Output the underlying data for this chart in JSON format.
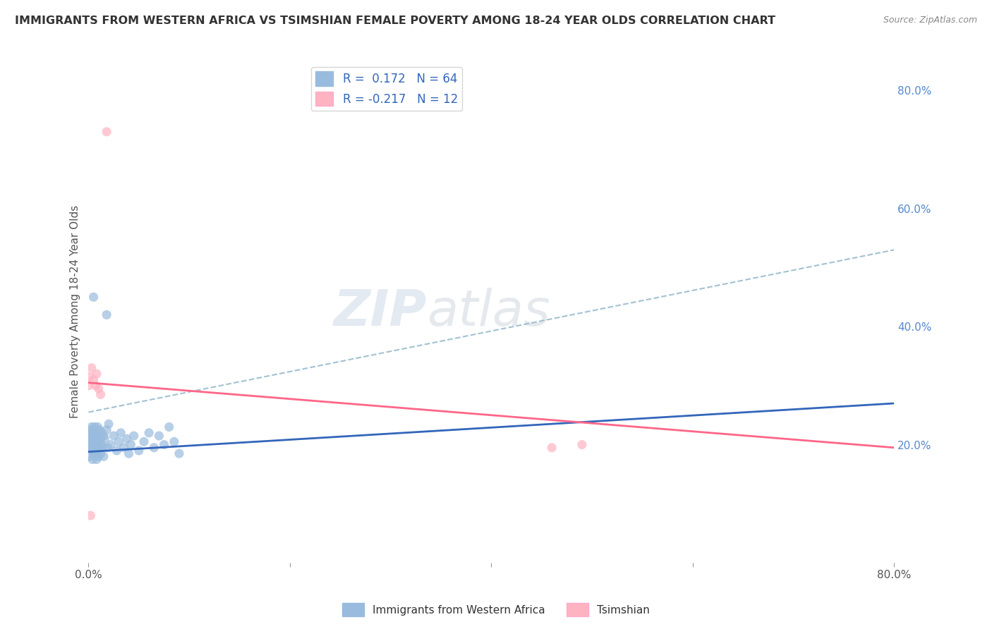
{
  "title": "IMMIGRANTS FROM WESTERN AFRICA VS TSIMSHIAN FEMALE POVERTY AMONG 18-24 YEAR OLDS CORRELATION CHART",
  "source": "Source: ZipAtlas.com",
  "ylabel": "Female Poverty Among 18-24 Year Olds",
  "xlim": [
    0.0,
    0.8
  ],
  "ylim": [
    0.0,
    0.85
  ],
  "R_blue": 0.172,
  "N_blue": 64,
  "R_pink": -0.217,
  "N_pink": 12,
  "blue_color": "#99BBDD",
  "blue_line_color": "#3366BB",
  "pink_color": "#FFB3C1",
  "pink_line_color": "#FF6688",
  "dash_color": "#99BBCC",
  "blue_scatter": [
    [
      0.0,
      0.22
    ],
    [
      0.001,
      0.195
    ],
    [
      0.001,
      0.18
    ],
    [
      0.002,
      0.215
    ],
    [
      0.002,
      0.225
    ],
    [
      0.002,
      0.2
    ],
    [
      0.003,
      0.21
    ],
    [
      0.003,
      0.195
    ],
    [
      0.003,
      0.23
    ],
    [
      0.004,
      0.205
    ],
    [
      0.004,
      0.19
    ],
    [
      0.004,
      0.175
    ],
    [
      0.005,
      0.22
    ],
    [
      0.005,
      0.2
    ],
    [
      0.005,
      0.185
    ],
    [
      0.006,
      0.215
    ],
    [
      0.006,
      0.23
    ],
    [
      0.006,
      0.195
    ],
    [
      0.007,
      0.21
    ],
    [
      0.007,
      0.2
    ],
    [
      0.007,
      0.185
    ],
    [
      0.008,
      0.22
    ],
    [
      0.008,
      0.195
    ],
    [
      0.008,
      0.175
    ],
    [
      0.009,
      0.21
    ],
    [
      0.009,
      0.23
    ],
    [
      0.009,
      0.19
    ],
    [
      0.01,
      0.215
    ],
    [
      0.01,
      0.2
    ],
    [
      0.01,
      0.18
    ],
    [
      0.011,
      0.225
    ],
    [
      0.011,
      0.195
    ],
    [
      0.012,
      0.21
    ],
    [
      0.012,
      0.185
    ],
    [
      0.013,
      0.22
    ],
    [
      0.013,
      0.2
    ],
    [
      0.014,
      0.195
    ],
    [
      0.015,
      0.215
    ],
    [
      0.015,
      0.18
    ],
    [
      0.016,
      0.21
    ],
    [
      0.018,
      0.225
    ],
    [
      0.019,
      0.195
    ],
    [
      0.02,
      0.235
    ],
    [
      0.022,
      0.2
    ],
    [
      0.025,
      0.215
    ],
    [
      0.028,
      0.19
    ],
    [
      0.03,
      0.205
    ],
    [
      0.032,
      0.22
    ],
    [
      0.035,
      0.195
    ],
    [
      0.038,
      0.21
    ],
    [
      0.04,
      0.185
    ],
    [
      0.042,
      0.2
    ],
    [
      0.045,
      0.215
    ],
    [
      0.05,
      0.19
    ],
    [
      0.005,
      0.45
    ],
    [
      0.018,
      0.42
    ],
    [
      0.055,
      0.205
    ],
    [
      0.06,
      0.22
    ],
    [
      0.065,
      0.195
    ],
    [
      0.07,
      0.215
    ],
    [
      0.075,
      0.2
    ],
    [
      0.08,
      0.23
    ],
    [
      0.085,
      0.205
    ],
    [
      0.09,
      0.185
    ]
  ],
  "pink_scatter": [
    [
      0.018,
      0.73
    ],
    [
      0.003,
      0.33
    ],
    [
      0.005,
      0.31
    ],
    [
      0.007,
      0.3
    ],
    [
      0.008,
      0.32
    ],
    [
      0.01,
      0.295
    ],
    [
      0.012,
      0.285
    ],
    [
      0.0,
      0.3
    ],
    [
      0.001,
      0.315
    ],
    [
      0.002,
      0.08
    ],
    [
      0.46,
      0.195
    ],
    [
      0.49,
      0.2
    ]
  ],
  "blue_trend_x": [
    0.0,
    0.8
  ],
  "blue_trend_y": [
    0.188,
    0.27
  ],
  "pink_trend_x": [
    0.0,
    0.8
  ],
  "pink_trend_y": [
    0.305,
    0.195
  ],
  "dash_trend_x": [
    0.0,
    0.8
  ],
  "dash_trend_y": [
    0.255,
    0.53
  ],
  "watermark_zip": "ZIP",
  "watermark_atlas": "atlas",
  "background_color": "#FFFFFF",
  "grid_color": "#E0E0E0"
}
